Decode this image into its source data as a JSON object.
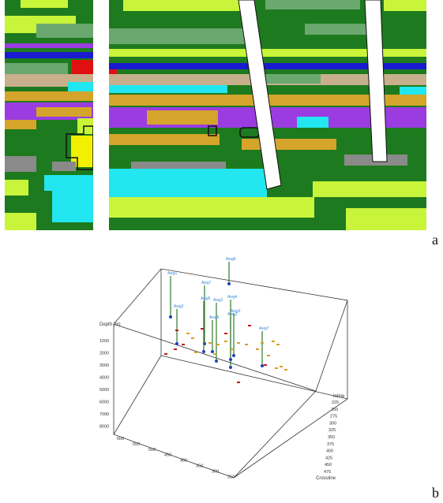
{
  "figure": {
    "panel_a": {
      "letter": "a",
      "colors": {
        "background_green": "#1e7a1e",
        "yellow_green": "#c8f53a",
        "sage": "#6aa870",
        "tan": "#c8b08c",
        "gold": "#d4a52a",
        "purple": "#9a3ce0",
        "cyan": "#22e6f0",
        "gray": "#8a8a8a",
        "blue": "#1a1ad0",
        "red": "#e01010",
        "yellow": "#f0f000",
        "white": "#ffffff",
        "dark_outline": "#111111"
      }
    },
    "panel_b": {
      "letter": "b",
      "axis_depth_label": "Depth\n(m)",
      "depth_ticks": [
        "1000",
        "2000",
        "3000",
        "4000",
        "5000",
        "6000",
        "7000",
        "8000"
      ],
      "crossline_ticks": [
        "600",
        "550",
        "500",
        "450",
        "400",
        "350",
        "300",
        "250"
      ],
      "crossline_label": "Crossline",
      "inline_ticks": [
        "225",
        "250",
        "275",
        "300",
        "325",
        "350",
        "375",
        "400",
        "425",
        "450",
        "475"
      ],
      "inline_label": "Inline",
      "well_labels": [
        "Awg8",
        "Awg1",
        "Awg7",
        "Awg5",
        "Awg1",
        "Awg2",
        "Awg4",
        "Awg3",
        "Awg6",
        "Awg7",
        "Awg2"
      ],
      "colors": {
        "well_line": "#2f7a2f",
        "well_label": "#3a8ad8",
        "cluster_gold": "#d8a020",
        "cluster_red": "#c41818",
        "marker_blue": "#2040c0",
        "box": "#333333"
      }
    }
  }
}
